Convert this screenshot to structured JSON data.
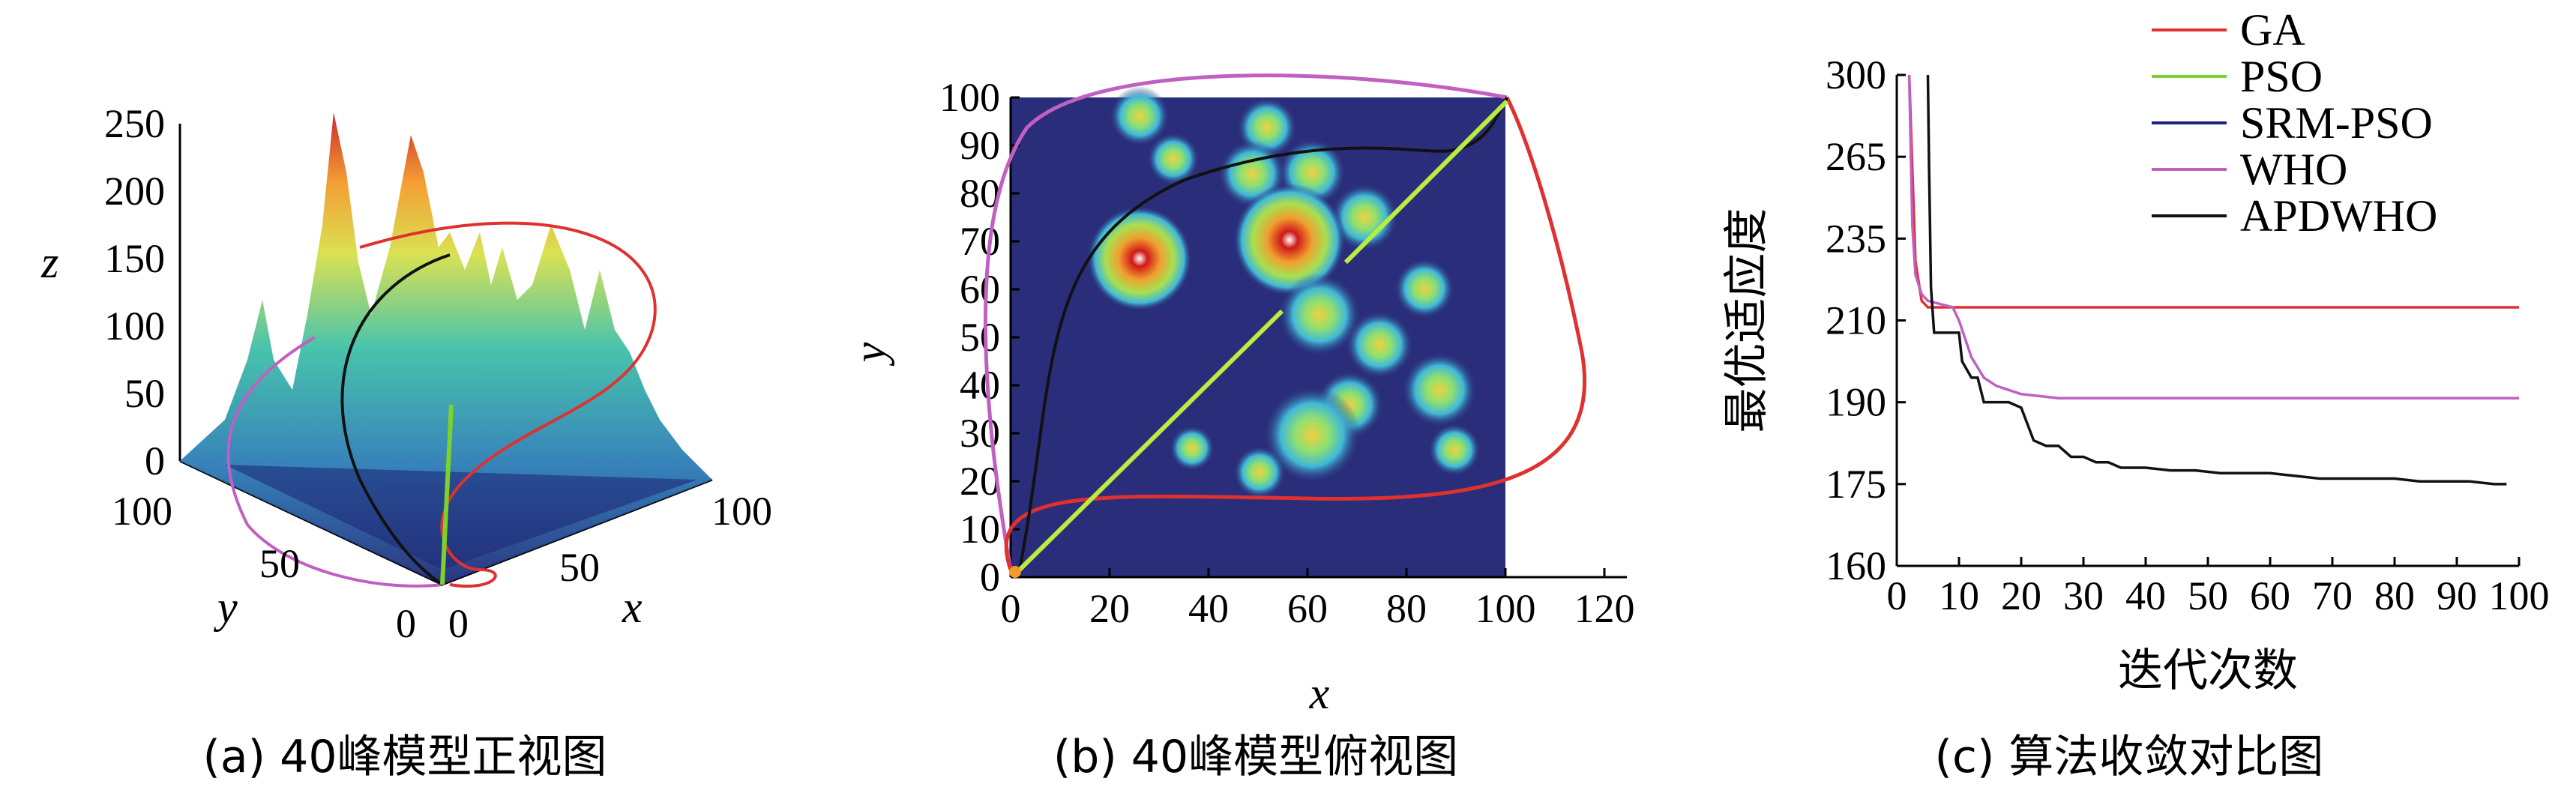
{
  "panels": {
    "a": {
      "caption": "(a) 40峰模型正视图",
      "z_label": "z",
      "y_label": "y",
      "x_label": "x",
      "z_ticks": [
        "0",
        "50",
        "100",
        "150",
        "200",
        "250"
      ],
      "y_ticks": [
        "100",
        "50",
        "0"
      ],
      "x_ticks": [
        "0",
        "50",
        "100"
      ],
      "colors": {
        "ga": "#e03030",
        "pso": "#7dd12a",
        "who": "#c060c0",
        "apdwho": "#111111"
      }
    },
    "b": {
      "caption": "(b) 40峰模型俯视图",
      "x_label": "x",
      "y_label": "y",
      "x_ticks": [
        "0",
        "20",
        "40",
        "60",
        "80",
        "100",
        "120"
      ],
      "y_ticks": [
        "0",
        "10",
        "20",
        "30",
        "40",
        "50",
        "60",
        "70",
        "80",
        "90",
        "100"
      ],
      "colors": {
        "ga": "#e03030",
        "pso": "#b8ee40",
        "who": "#c060c0",
        "apdwho": "#111111",
        "background": "#2a2d7a"
      }
    }
  },
  "chart_data": {
    "type": "line",
    "caption": "(c) 算法收敛对比图",
    "xlabel": "迭代次数",
    "ylabel": "最优适应度",
    "xlim": [
      0,
      100
    ],
    "ylim": [
      160,
      300
    ],
    "x_ticks": [
      0,
      10,
      20,
      30,
      40,
      50,
      60,
      70,
      80,
      90,
      100
    ],
    "y_ticks": [
      160,
      175,
      190,
      210,
      235,
      265,
      300
    ],
    "legend_placement": "top-right",
    "series": [
      {
        "name": "GA",
        "color": "#e03030",
        "x": [
          2,
          3,
          4,
          5,
          6,
          100
        ],
        "y": [
          300,
          228,
          216,
          214,
          214,
          214
        ]
      },
      {
        "name": "PSO",
        "color": "#7dd12a",
        "x": [],
        "y": []
      },
      {
        "name": "SRM-PSO",
        "color": "#1a237e",
        "x": [],
        "y": []
      },
      {
        "name": "WHO",
        "color": "#c060c0",
        "x": [
          2,
          2.5,
          3,
          4,
          5,
          7,
          9,
          10,
          12,
          14,
          16,
          18,
          20,
          23,
          26,
          30,
          100
        ],
        "y": [
          300,
          240,
          224,
          218,
          216,
          215,
          214,
          210,
          201,
          196,
          194,
          193,
          192,
          191.5,
          191,
          191,
          191
        ]
      },
      {
        "name": "APDWHO",
        "color": "#111111",
        "x": [
          5,
          5.2,
          5.5,
          6,
          8,
          10,
          10.5,
          12,
          13,
          14,
          16,
          18,
          20,
          21,
          22,
          24,
          26,
          28,
          30,
          32,
          34,
          36,
          38,
          40,
          44,
          48,
          52,
          56,
          60,
          64,
          68,
          72,
          76,
          80,
          84,
          88,
          92,
          96,
          98
        ],
        "y": [
          300,
          260,
          220,
          207,
          207,
          207,
          200,
          196,
          196,
          190,
          190,
          190,
          189,
          186,
          183,
          182,
          182,
          180,
          180,
          179,
          179,
          178,
          178,
          178,
          177.5,
          177.5,
          177,
          177,
          177,
          176.5,
          176,
          176,
          176,
          176,
          175.5,
          175.5,
          175.5,
          175,
          175
        ]
      }
    ]
  }
}
